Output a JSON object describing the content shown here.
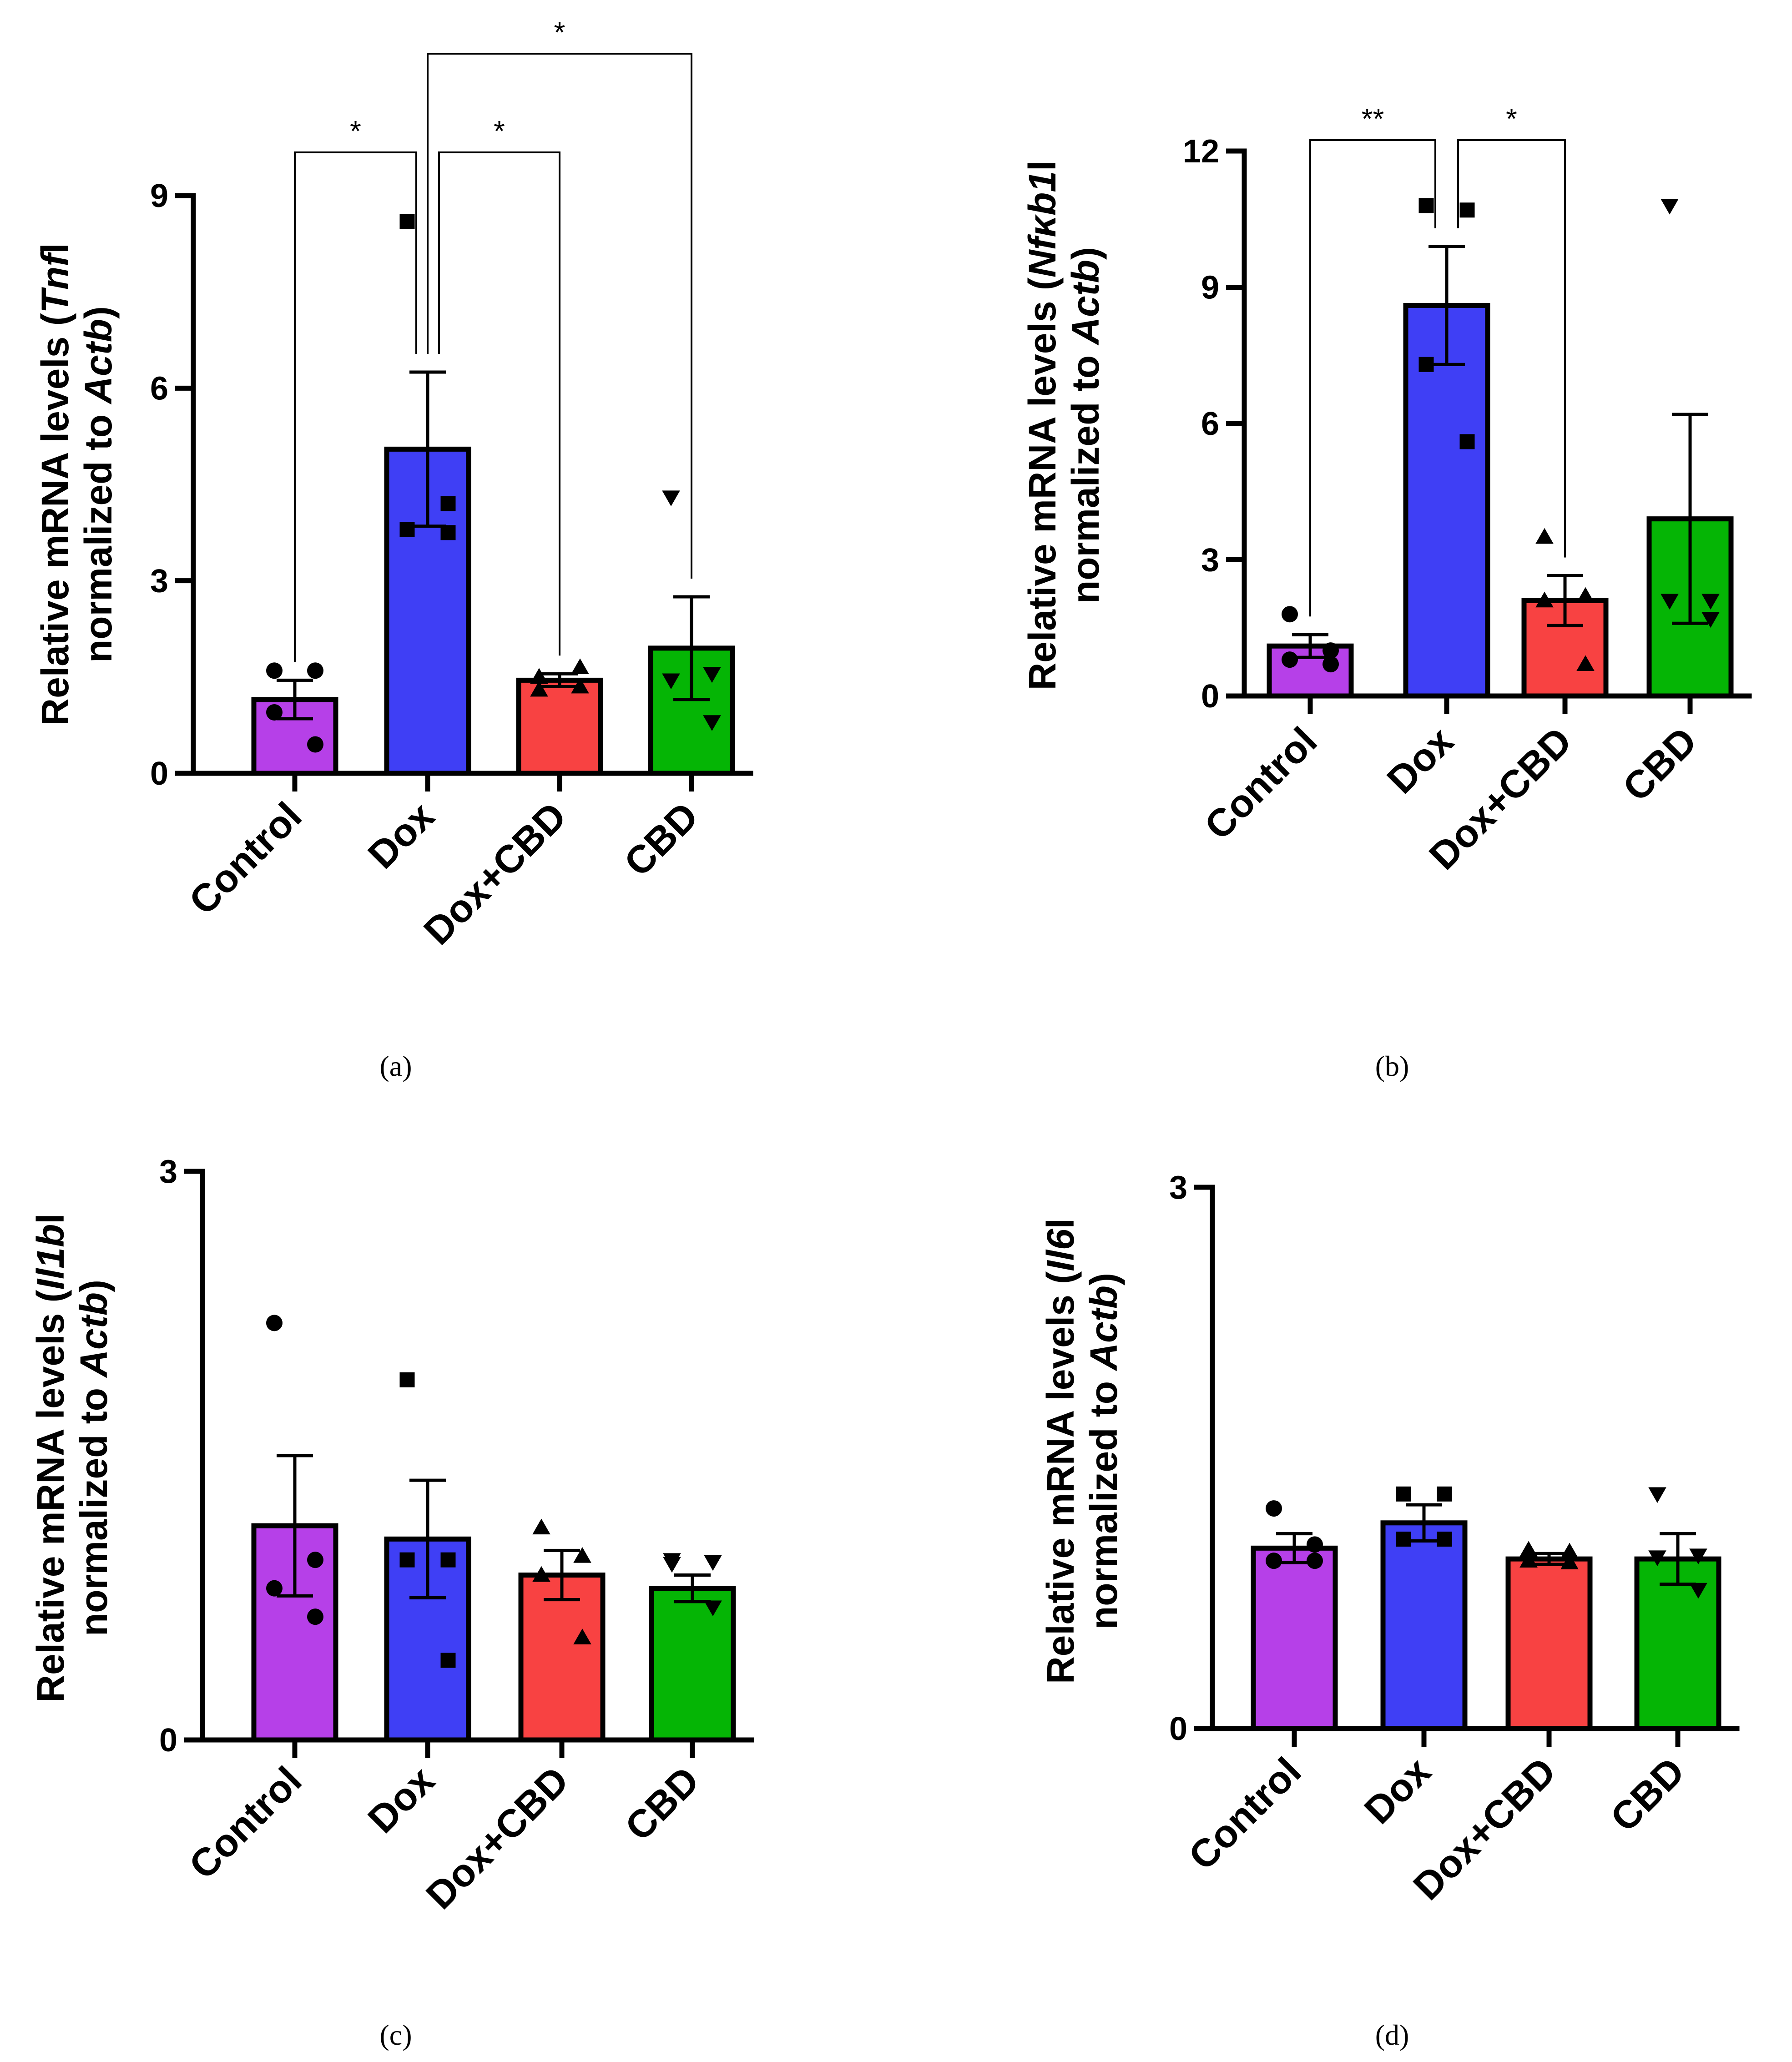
{
  "chart_data": [
    {
      "type": "bar",
      "panel_label": "(a)",
      "categories": [
        "Control",
        "Dox",
        "Dox+CBD",
        "CBD"
      ],
      "colors": [
        "#b640e8",
        "#3f3ff5",
        "#f84242",
        "#05b505"
      ],
      "markers": [
        "circle",
        "square",
        "triangle-up",
        "triangle-down"
      ],
      "values": [
        1.15,
        5.05,
        1.45,
        1.95
      ],
      "errors": [
        0.3,
        1.2,
        0.1,
        0.8
      ],
      "points": [
        [
          1.6,
          1.6,
          0.95,
          0.45
        ],
        [
          8.6,
          4.2,
          3.8,
          3.75
        ],
        [
          1.3,
          1.35,
          1.5,
          1.65
        ],
        [
          4.3,
          1.55,
          1.45,
          0.8
        ]
      ],
      "ylim": [
        0,
        9
      ],
      "yticks": [
        "0",
        "3",
        "6",
        "9"
      ],
      "ylabel": {
        "line1_pre": "Relative mRNA levels (",
        "line1_gene": "Tnf",
        "line1_post": "l",
        "line2_pre": "normalized to ",
        "line2_ref": "Actb",
        "line2_post": ")"
      },
      "significance": [
        {
          "from": 0,
          "to": 1,
          "label": "*",
          "level": 9.7
        },
        {
          "from": 1,
          "to": 2,
          "label": "*",
          "level": 9.7
        },
        {
          "from": 1,
          "to": 3,
          "label": "*",
          "level": 11.3
        }
      ]
    },
    {
      "type": "bar",
      "panel_label": "(b)",
      "categories": [
        "Control",
        "Dox",
        "Dox+CBD",
        "CBD"
      ],
      "colors": [
        "#b640e8",
        "#3f3ff5",
        "#f84242",
        "#05b505"
      ],
      "markers": [
        "circle",
        "square",
        "triangle-up",
        "triangle-down"
      ],
      "values": [
        1.1,
        8.6,
        2.1,
        3.9
      ],
      "errors": [
        0.25,
        1.3,
        0.55,
        2.3
      ],
      "points": [
        [
          1.8,
          1.0,
          0.8,
          0.7
        ],
        [
          10.8,
          10.7,
          7.3,
          5.6
        ],
        [
          3.5,
          2.2,
          2.1,
          0.7
        ],
        [
          10.8,
          2.1,
          2.1,
          1.7
        ]
      ],
      "ylim": [
        0,
        12
      ],
      "yticks": [
        "0",
        "3",
        "6",
        "9",
        "12"
      ],
      "ylabel": {
        "line1_pre": "Relative mRNA levels (",
        "line1_gene": "Nfκb1",
        "line1_post": "l",
        "line2_pre": "normalized to ",
        "line2_ref": "Actb",
        "line2_post": ")"
      },
      "significance": [
        {
          "from": 0,
          "to": 1,
          "label": "**",
          "level": 12.7
        },
        {
          "from": 1,
          "to": 2,
          "label": "*",
          "level": 12.7
        }
      ]
    },
    {
      "type": "bar",
      "panel_label": "(c)",
      "categories": [
        "Control",
        "Dox",
        "Dox+CBD",
        "CBD"
      ],
      "colors": [
        "#b640e8",
        "#3f3ff5",
        "#f84242",
        "#05b505"
      ],
      "markers": [
        "circle",
        "square",
        "triangle-up",
        "triangle-down"
      ],
      "values": [
        1.13,
        1.06,
        0.87,
        0.8
      ],
      "errors": [
        0.37,
        0.31,
        0.13,
        0.07
      ],
      "points": [
        [
          2.2,
          0.95,
          0.8,
          0.65
        ],
        [
          1.9,
          0.95,
          0.95,
          0.42
        ],
        [
          1.12,
          0.97,
          0.87,
          0.54
        ],
        [
          0.95,
          0.94,
          0.93,
          0.7
        ]
      ],
      "ylim": [
        0,
        3
      ],
      "yticks": [
        "0",
        "3"
      ],
      "ylabel": {
        "line1_pre": "Relative mRNA levels (",
        "line1_gene": "Il1b",
        "line1_post": "l",
        "line2_pre": "normalized to ",
        "line2_ref": "Actb",
        "line2_post": ")"
      },
      "significance": []
    },
    {
      "type": "bar",
      "panel_label": "(d)",
      "categories": [
        "Control",
        "Dox",
        "Dox+CBD",
        "CBD"
      ],
      "colors": [
        "#b640e8",
        "#3f3ff5",
        "#f84242",
        "#05b505"
      ],
      "markers": [
        "circle",
        "square",
        "triangle-up",
        "triangle-down"
      ],
      "values": [
        1.0,
        1.14,
        0.94,
        0.94
      ],
      "errors": [
        0.08,
        0.1,
        0.03,
        0.14
      ],
      "points": [
        [
          1.22,
          1.02,
          0.93,
          0.93
        ],
        [
          1.3,
          1.3,
          1.05,
          1.05
        ],
        [
          0.99,
          0.98,
          0.93,
          0.92
        ],
        [
          1.3,
          0.96,
          0.95,
          0.77
        ]
      ],
      "ylim": [
        0,
        3
      ],
      "yticks": [
        "0",
        "3"
      ],
      "ylabel": {
        "line1_pre": "Relative mRNA levels (",
        "line1_gene": "Il6",
        "line1_post": "l",
        "line2_pre": "normalized to ",
        "line2_ref": "Actb",
        "line2_post": ")"
      },
      "significance": []
    }
  ]
}
